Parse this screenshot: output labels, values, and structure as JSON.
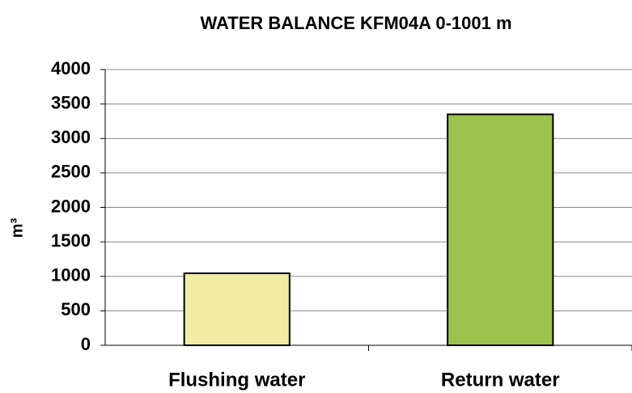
{
  "chart_data": {
    "type": "bar",
    "title": "WATER BALANCE KFM04A 0-1001 m",
    "y_label": "m³",
    "categories": [
      "Flushing water",
      "Return water"
    ],
    "values": [
      1045,
      3350
    ],
    "colors": [
      "#f0eca6",
      "#9cc34c"
    ],
    "ylim": [
      0,
      4000
    ],
    "yticks": [
      0,
      500,
      1000,
      1500,
      2000,
      2500,
      3000,
      3500,
      4000
    ],
    "grid": true
  }
}
